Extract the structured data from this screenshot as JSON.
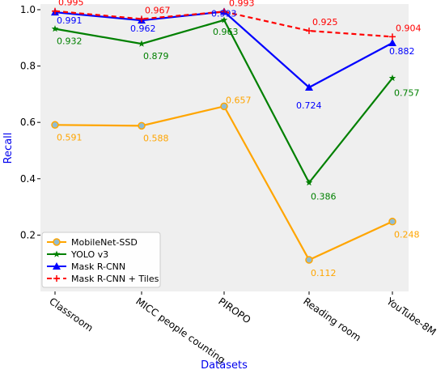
{
  "chart_data": {
    "type": "line",
    "xlabel": "Datasets",
    "ylabel": "Recall",
    "categories": [
      "Classroom",
      "MICC people counting",
      "PIROPO",
      "Reading room",
      "YouTube-8M"
    ],
    "ylim": [
      0.0,
      1.02
    ],
    "yticks": [
      0.2,
      0.4,
      0.6,
      0.8,
      1.0
    ],
    "yticks_labels": [
      "0.2",
      "0.4",
      "0.6",
      "0.8",
      "1.0"
    ],
    "grid": false,
    "background": "#efefef",
    "legend_position": "lower-left",
    "series": [
      {
        "name": "MobileNet-SSD",
        "values": [
          0.591,
          0.588,
          0.657,
          0.112,
          0.248
        ],
        "labels": [
          "0.591",
          "0.588",
          "0.657",
          "0.112",
          "0.248"
        ],
        "color": "#ffa500",
        "marker": "circle",
        "marker_face": "#8fbcd4",
        "dash": "none"
      },
      {
        "name": "YOLO v3",
        "values": [
          0.932,
          0.879,
          0.963,
          0.386,
          0.757
        ],
        "labels": [
          "0.932",
          "0.879",
          "0.963",
          "0.386",
          "0.757"
        ],
        "color": "#008000",
        "marker": "star",
        "dash": "none"
      },
      {
        "name": "Mask R-CNN",
        "values": [
          0.991,
          0.962,
          0.993,
          0.724,
          0.882
        ],
        "labels": [
          "0.991",
          "0.962",
          "0.993",
          "0.724",
          "0.882"
        ],
        "color": "#0000ff",
        "marker": "triangle",
        "dash": "none"
      },
      {
        "name": "Mask R-CNN + Tiles",
        "values": [
          0.995,
          0.967,
          0.993,
          0.925,
          0.904
        ],
        "labels": [
          "0.995",
          "0.967",
          "0.993",
          "0.925",
          "0.904"
        ],
        "color": "#ff0000",
        "marker": "plus",
        "dash": "6,4"
      }
    ]
  }
}
